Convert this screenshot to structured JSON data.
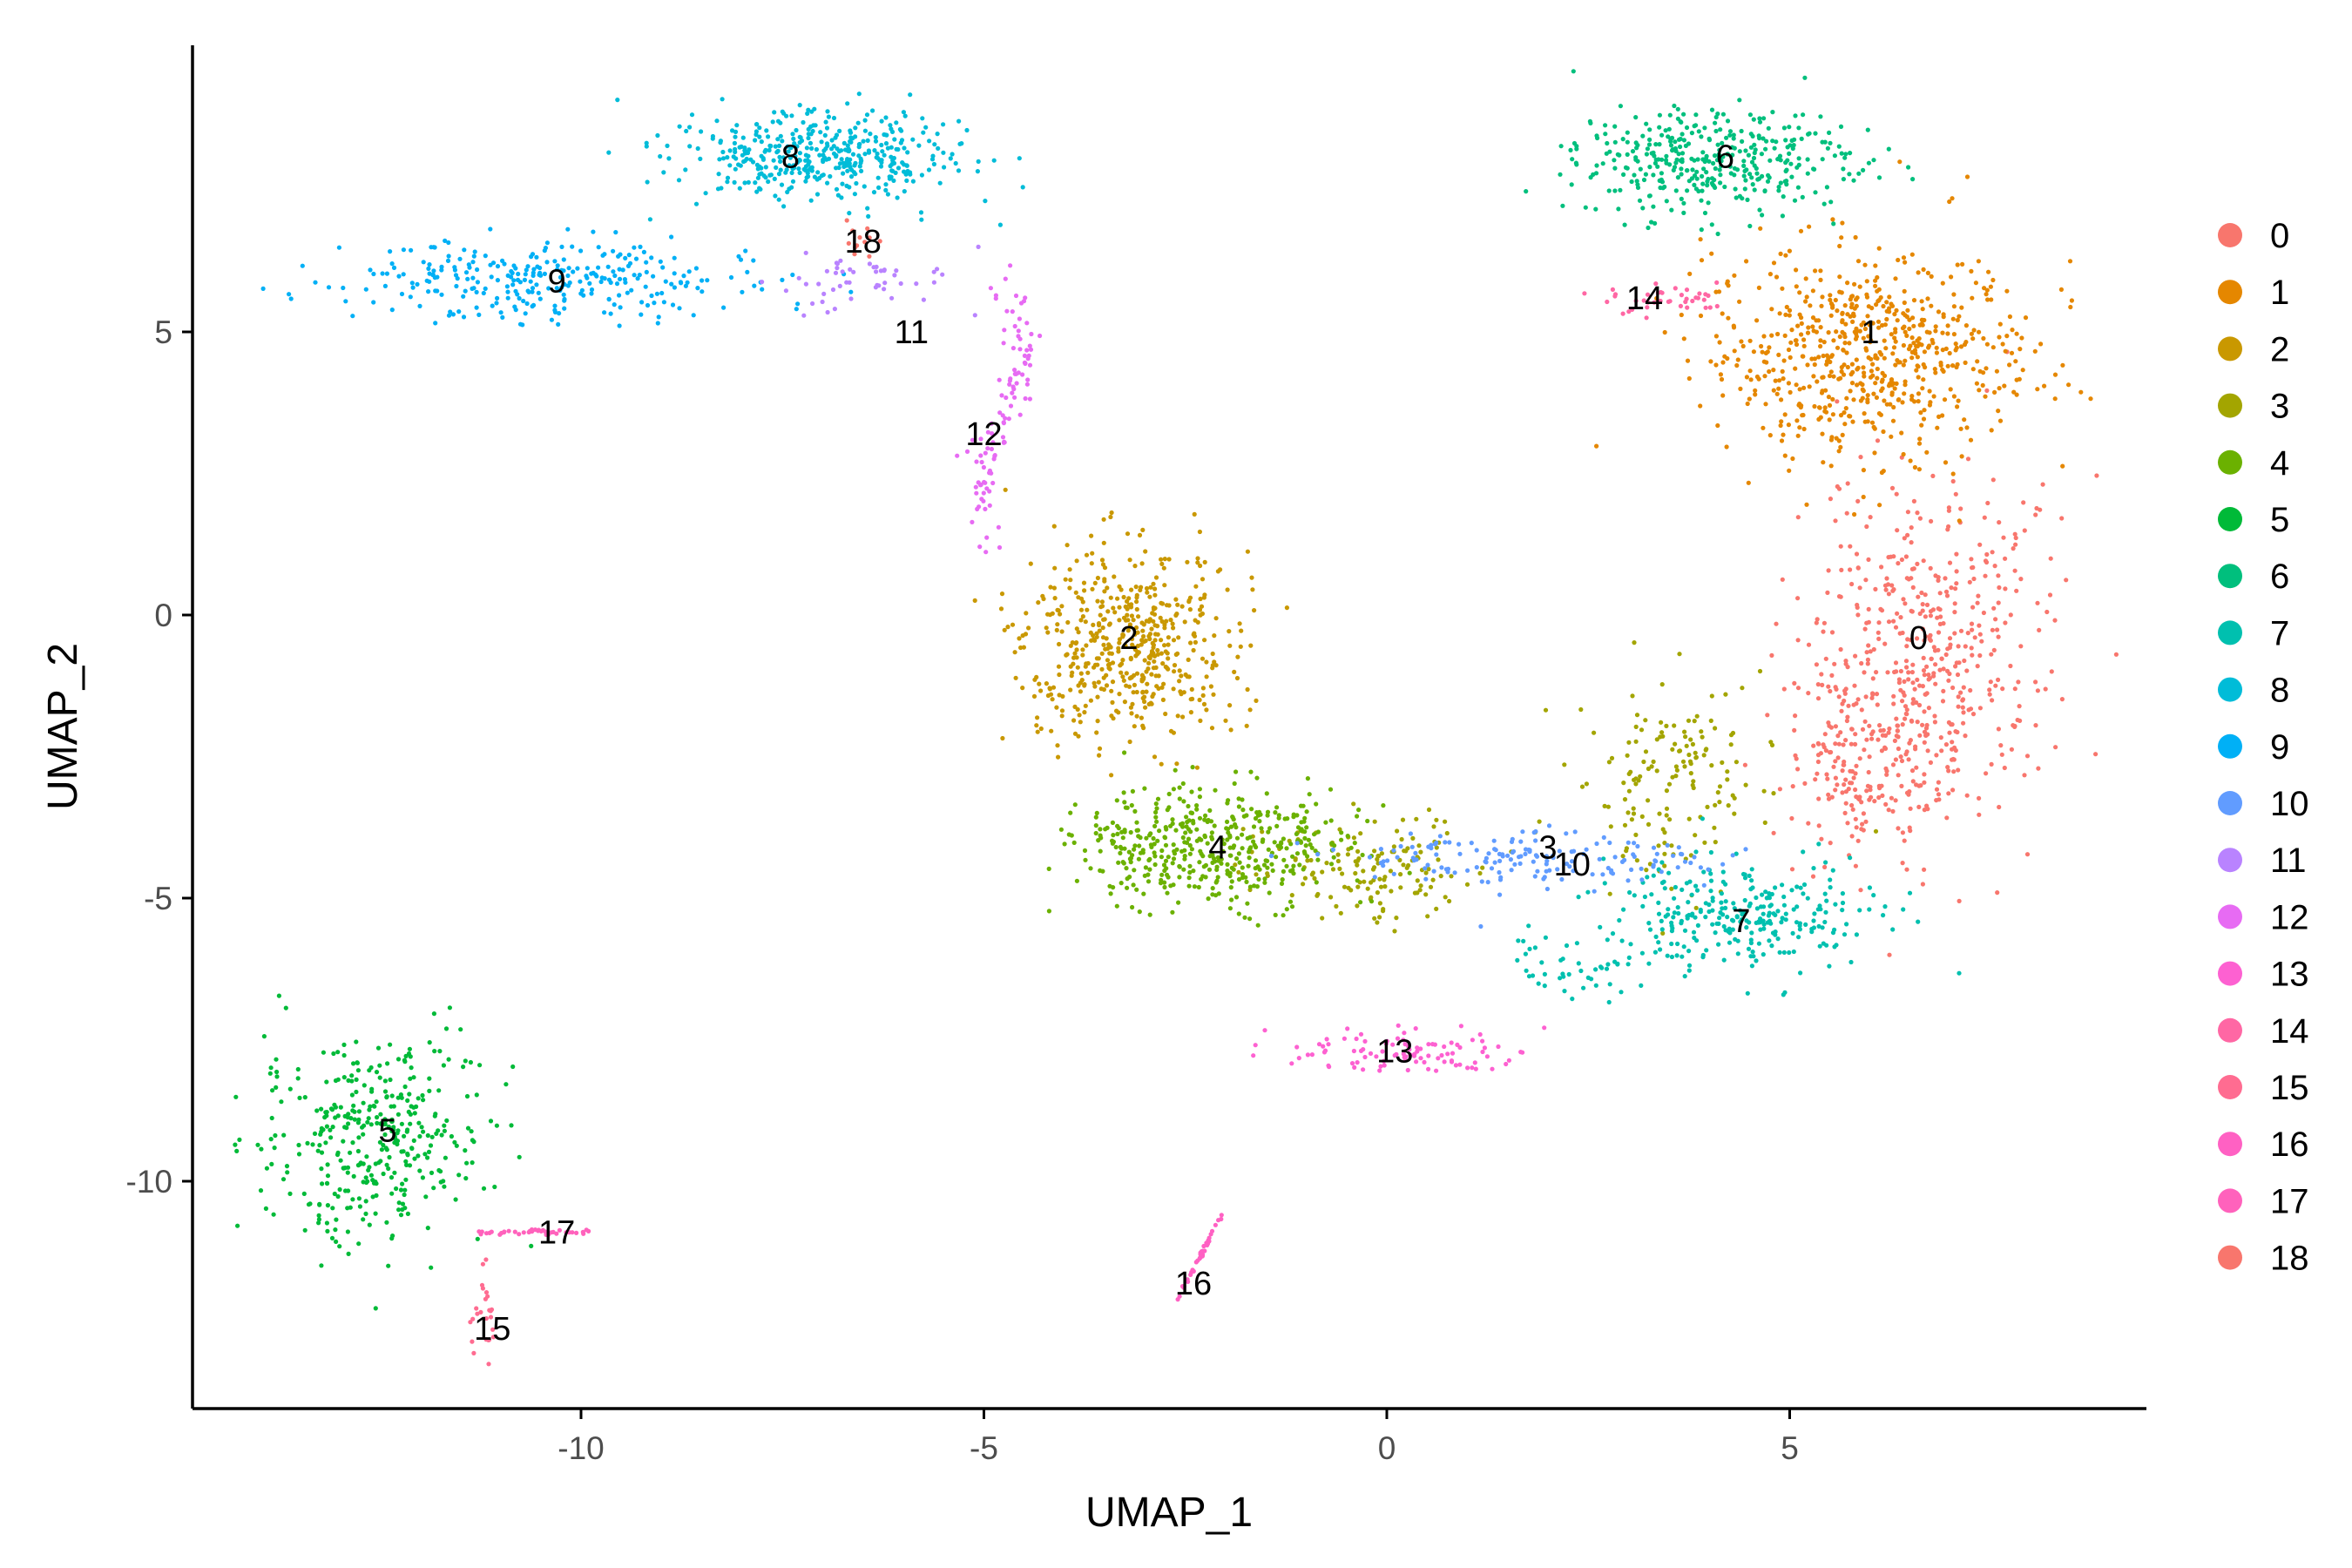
{
  "chart_data": {
    "type": "scatter",
    "xlabel": "UMAP_1",
    "ylabel": "UMAP_2",
    "xlim": [
      -14.9,
      9.3
    ],
    "ylim": [
      -14.0,
      10.0
    ],
    "x_ticks": [
      -10,
      -5,
      0,
      5
    ],
    "x_tick_labels": [
      "-10",
      "-5",
      "0",
      "5"
    ],
    "y_ticks": [
      -10,
      -5,
      0,
      5
    ],
    "y_tick_labels": [
      "-10",
      "-5",
      "0",
      "5"
    ],
    "grid": false,
    "legend_position": "right",
    "legend_entries": [
      "0",
      "1",
      "2",
      "3",
      "4",
      "5",
      "6",
      "7",
      "8",
      "9",
      "10",
      "11",
      "12",
      "13",
      "14",
      "15",
      "16",
      "17",
      "18"
    ],
    "clusters": [
      {
        "id": "0",
        "color": "#F8766D",
        "label_pos": [
          6.6,
          -0.4
        ],
        "n": 650
      },
      {
        "id": "1",
        "color": "#E58700",
        "label_pos": [
          6.0,
          5.0
        ],
        "n": 650
      },
      {
        "id": "2",
        "color": "#C99800",
        "label_pos": [
          -3.2,
          -0.4
        ],
        "n": 520
      },
      {
        "id": "3",
        "color": "#A3A500",
        "label_pos": [
          2.0,
          -4.1
        ],
        "n": 300
      },
      {
        "id": "4",
        "color": "#6BB100",
        "label_pos": [
          -2.1,
          -4.1
        ],
        "n": 450
      },
      {
        "id": "5",
        "color": "#00BA38",
        "label_pos": [
          -12.4,
          -9.1
        ],
        "n": 380
      },
      {
        "id": "6",
        "color": "#00BF7D",
        "label_pos": [
          4.2,
          8.1
        ],
        "n": 380
      },
      {
        "id": "7",
        "color": "#00C0AF",
        "label_pos": [
          4.4,
          -5.4
        ],
        "n": 330
      },
      {
        "id": "8",
        "color": "#00BCD8",
        "label_pos": [
          -7.4,
          8.1
        ],
        "n": 420
      },
      {
        "id": "9",
        "color": "#00B0F6",
        "label_pos": [
          -10.3,
          5.9
        ],
        "n": 300
      },
      {
        "id": "10",
        "color": "#619CFF",
        "label_pos": [
          2.3,
          -4.4
        ],
        "n": 160
      },
      {
        "id": "11",
        "color": "#B983FF",
        "label_pos": [
          -5.9,
          5.0
        ],
        "n": 50
      },
      {
        "id": "12",
        "color": "#E76BF3",
        "label_pos": [
          -5.0,
          3.2
        ],
        "n": 110
      },
      {
        "id": "13",
        "color": "#FD61D1",
        "label_pos": [
          0.1,
          -7.7
        ],
        "n": 100
      },
      {
        "id": "14",
        "color": "#FF67A4",
        "label_pos": [
          3.2,
          5.6
        ],
        "n": 40
      },
      {
        "id": "15",
        "color": "#FF6C91",
        "label_pos": [
          -11.1,
          -12.6
        ],
        "n": 25
      },
      {
        "id": "16",
        "color": "#FF61C3",
        "label_pos": [
          -2.4,
          -11.8
        ],
        "n": 40
      },
      {
        "id": "17",
        "color": "#FF62BC",
        "label_pos": [
          -10.3,
          -10.9
        ],
        "n": 40
      },
      {
        "id": "18",
        "color": "#F8766D",
        "label_pos": [
          -6.5,
          6.6
        ],
        "n": 12
      }
    ],
    "colors": [
      "#F8766D",
      "#E58700",
      "#C99800",
      "#A3A500",
      "#6BB100",
      "#00BA38",
      "#00BF7D",
      "#00C0AF",
      "#00BCD8",
      "#00B0F6",
      "#619CFF",
      "#B983FF",
      "#E76BF3",
      "#FD61D1",
      "#FF67A4",
      "#FF6C91",
      "#FF61C3",
      "#FF62BC",
      "#F8766D"
    ]
  }
}
